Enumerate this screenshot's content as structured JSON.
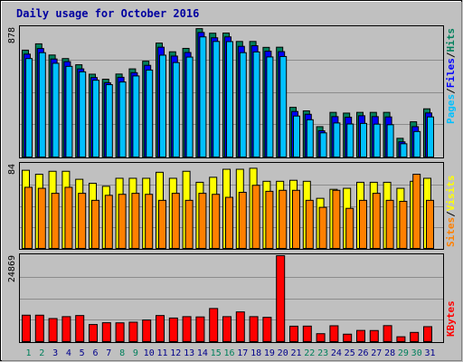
{
  "chart_data": {
    "type": "bar",
    "title": "Daily usage for October 2016",
    "days": [
      "1",
      "2",
      "3",
      "4",
      "5",
      "6",
      "7",
      "8",
      "9",
      "10",
      "11",
      "12",
      "13",
      "14",
      "15",
      "16",
      "17",
      "18",
      "19",
      "20",
      "21",
      "22",
      "23",
      "24",
      "25",
      "26",
      "27",
      "28",
      "29",
      "30",
      "31"
    ],
    "weekend_days": [
      "1",
      "2",
      "8",
      "9",
      "15",
      "16",
      "22",
      "23",
      "29",
      "30"
    ],
    "panels": [
      {
        "id": "hits-files-pages",
        "max_label": "878",
        "ylim": [
          0,
          878
        ],
        "series": [
          {
            "name": "Hits",
            "color": "#00805c",
            "values": [
              725,
              768,
              692,
              668,
              626,
              562,
              528,
              563,
              598,
              650,
              773,
              714,
              737,
              871,
              840,
              841,
              784,
              784,
              744,
              745,
              337,
              313,
              206,
              303,
              298,
              303,
              303,
              303,
              127,
              239,
              327
            ]
          },
          {
            "name": "Files",
            "color": "#0000ff",
            "values": [
              698,
              736,
              665,
              647,
              598,
              539,
              504,
              541,
              572,
              622,
              745,
              685,
              709,
              845,
              809,
              815,
              751,
              755,
              718,
              715,
              309,
              290,
              178,
              274,
              270,
              280,
              274,
              272,
              103,
              206,
              299
            ]
          },
          {
            "name": "Pages",
            "color": "#00c0ff",
            "values": [
              668,
              708,
              636,
              615,
              578,
              521,
              491,
              509,
              550,
              590,
              691,
              641,
              678,
              815,
              784,
              783,
              708,
              713,
              679,
              682,
              278,
              253,
              164,
              231,
              224,
              228,
              223,
              219,
              90,
              173,
              272
            ]
          }
        ]
      },
      {
        "id": "visits-sites",
        "max_label": "84",
        "ylim": [
          0,
          84
        ],
        "series": [
          {
            "name": "Visits",
            "color": "#ffff00",
            "values": [
              78,
              74,
              77,
              77,
              69,
              65,
              62,
              70,
              70,
              70,
              76,
              70,
              77,
              66,
              71,
              79,
              79,
              80,
              67,
              67,
              68,
              67,
              50,
              59,
              60,
              66,
              66,
              66,
              60,
              67,
              70
            ]
          },
          {
            "name": "Sites",
            "color": "#ff8000",
            "values": [
              61,
              60,
              55,
              61,
              55,
              48,
              53,
              54,
              55,
              54,
              48,
              55,
              48,
              55,
              54,
              51,
              56,
              63,
              57,
              58,
              58,
              48,
              41,
              58,
              40,
              48,
              55,
              48,
              47,
              74,
              48
            ]
          }
        ]
      },
      {
        "id": "kbytes",
        "max_label": "24869",
        "ylim": [
          0,
          24869
        ],
        "series": [
          {
            "name": "KBytes",
            "color": "#ff0000",
            "values": [
              7650,
              7650,
              6680,
              7230,
              7550,
              4950,
              5470,
              5440,
              5630,
              6250,
              7550,
              6830,
              7230,
              7150,
              9590,
              7230,
              8600,
              7230,
              7030,
              24869,
              4470,
              4490,
              2300,
              4590,
              2160,
              3240,
              3210,
              4630,
              1410,
              2670,
              4330
            ]
          }
        ]
      }
    ],
    "legend_right": {
      "top": [
        "Pages",
        "Files",
        "Hits"
      ],
      "middle": [
        "Sites",
        "Visits"
      ],
      "bottom": [
        "KBytes"
      ]
    }
  },
  "colors": {
    "background": "#c0c0c0",
    "weekday_label": "#00008b",
    "weekend_label": "#00805c",
    "hits": "#00805c",
    "files": "#0000ff",
    "pages": "#00c0ff",
    "visits": "#ffff00",
    "sites": "#ff8000",
    "kbytes": "#ff0000"
  }
}
